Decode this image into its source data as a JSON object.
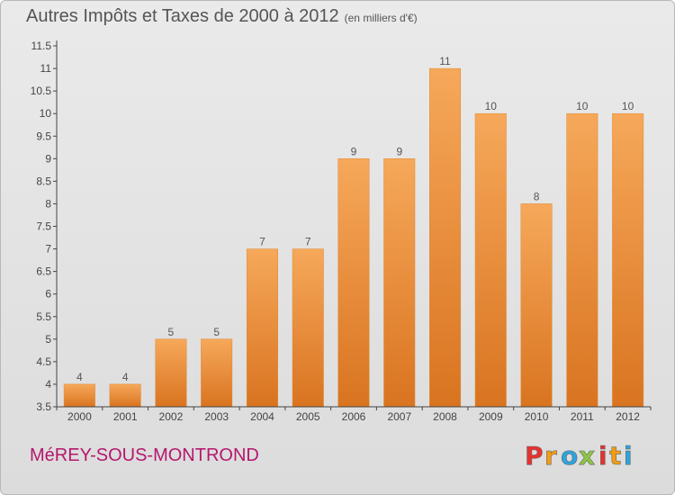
{
  "title": {
    "main": "Autres Impôts et Taxes de 2000 à 2012",
    "unit": "(en milliers d'€)"
  },
  "commune": "MéREY-SOUS-MONTROND",
  "logo": {
    "text": "Proxiti",
    "letters": [
      "P",
      "r",
      "o",
      "x",
      "i",
      "t",
      "i"
    ],
    "colors": [
      "#e8312f",
      "#f39c12",
      "#2ea3dd",
      "#8cc63f",
      "#e8312f",
      "#f39c12",
      "#2ea3dd"
    ]
  },
  "colors": {
    "bar_top": "#f6a85a",
    "bar_bottom": "#d97420",
    "axis": "#444444",
    "grid": "#d0d0d0"
  },
  "chart_data": {
    "type": "bar",
    "categories": [
      "2000",
      "2001",
      "2002",
      "2003",
      "2004",
      "2005",
      "2006",
      "2007",
      "2008",
      "2009",
      "2010",
      "2011",
      "2012"
    ],
    "values": [
      4,
      4,
      5,
      5,
      7,
      7,
      9,
      9,
      11,
      10,
      8,
      10,
      10
    ],
    "labels": [
      "4",
      "4",
      "5",
      "5",
      "7",
      "7",
      "9",
      "9",
      "11",
      "10",
      "8",
      "10",
      "10"
    ],
    "ylim": [
      3.5,
      11.5
    ],
    "yticks": [
      "3.5",
      "4",
      "4.5",
      "5",
      "5.5",
      "6",
      "6.5",
      "7",
      "7.5",
      "8",
      "8.5",
      "9",
      "9.5",
      "10",
      "10.5",
      "11",
      "11.5"
    ],
    "title": "Autres Impôts et Taxes de 2000 à 2012",
    "xlabel": "",
    "ylabel": "",
    "grid": false
  }
}
